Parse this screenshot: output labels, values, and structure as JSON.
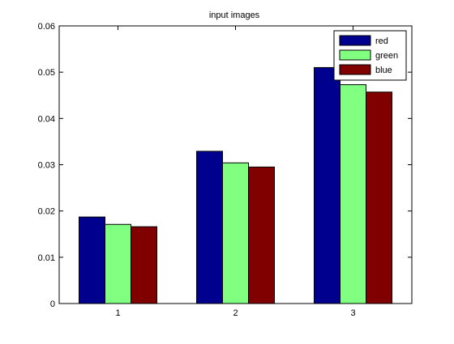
{
  "chart_data": {
    "type": "bar",
    "title": "input images",
    "xlabel": "",
    "ylabel": "",
    "categories": [
      "1",
      "2",
      "3"
    ],
    "series": [
      {
        "name": "red",
        "color": "#00008f",
        "values": [
          0.0187,
          0.0329,
          0.051
        ]
      },
      {
        "name": "green",
        "color": "#80ff80",
        "values": [
          0.0171,
          0.0304,
          0.0473
        ]
      },
      {
        "name": "blue",
        "color": "#800000",
        "values": [
          0.0166,
          0.0295,
          0.0457
        ]
      }
    ],
    "ylim": [
      0,
      0.06
    ],
    "yticks": [
      "0",
      "0.01",
      "0.02",
      "0.03",
      "0.04",
      "0.05",
      "0.06"
    ],
    "grid": false,
    "legend_position": "top-right"
  }
}
